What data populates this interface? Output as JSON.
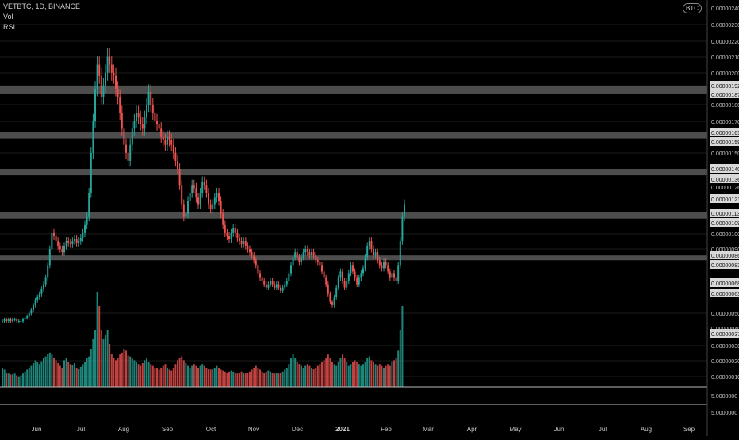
{
  "header": {
    "symbol_line": "VETBTC, 1D, BINANCE",
    "vol_label": "Vol",
    "rsi_label": "RSI",
    "currency_pill": "BTC"
  },
  "colors": {
    "background": "#000000",
    "up": "#26a69a",
    "down": "#ef5350",
    "band": "#5a5a5a",
    "label_bg": "#d9d9d9",
    "grid": "#1c1c1c",
    "axis_text": "#c8c8c8"
  },
  "chart_data": {
    "type": "candlestick",
    "x_ticks": [
      "Jun",
      "Jul",
      "Aug",
      "Sep",
      "Oct",
      "Nov",
      "Dec",
      "2021",
      "Feb",
      "Mar",
      "Apr",
      "May",
      "Jun",
      "Jul",
      "Aug",
      "Sep"
    ],
    "price_axis_ticks": [
      "0.00000230",
      "0.00000220",
      "0.00000210",
      "0.00000200",
      "0.00000180",
      "0.00000170",
      "0.00000150",
      "0.00000100",
      "0.00000090",
      "0.00000050",
      "0.00000030",
      "0.00000020",
      "0.00000010"
    ],
    "price_axis_highlighted": [
      "0.00000192",
      "0.00000187",
      "0.00000163",
      "0.00000159",
      "0.00000140",
      "0.00000136",
      "0.00000121",
      "0.00000113",
      "0.00000109",
      "0.00000086",
      "0.00000083",
      "0.00000068",
      "0.00000063",
      "0.00000037"
    ],
    "price_axis_partial": [
      "0.000002",
      "0.00000040",
      "0.00000126",
      "0.00000240"
    ],
    "indicator_axis_ticks": [
      "5.0000000",
      "5.0000000"
    ],
    "zones": [
      {
        "top": 1.92e-06,
        "bottom": 1.87e-06
      },
      {
        "top": 1.63e-06,
        "bottom": 1.59e-06
      },
      {
        "top": 1.4e-06,
        "bottom": 1.36e-06
      },
      {
        "top": 1.13e-06,
        "bottom": 1.09e-06
      },
      {
        "top": 8.6e-07,
        "bottom": 8.3e-07
      }
    ],
    "ohlc_series": {
      "start": "2020-05-10",
      "interval": "1D",
      "close": [
        4.5e-07,
        4.6e-07,
        4.5e-07,
        4.6e-07,
        4.5e-07,
        4.6e-07,
        4.6e-07,
        4.5e-07,
        4.5e-07,
        4.5e-07,
        4.6e-07,
        4.7e-07,
        4.8e-07,
        5e-07,
        5.2e-07,
        5.5e-07,
        5.8e-07,
        6e-07,
        6.2e-07,
        6.5e-07,
        6.8e-07,
        7.2e-07,
        8e-07,
        9e-07,
        1e-06,
        9.8e-07,
        9.5e-07,
        9.2e-07,
        9e-07,
        8.8e-07,
        9.2e-07,
        9.5e-07,
        9.4e-07,
        9.3e-07,
        9.5e-07,
        9.6e-07,
        9.4e-07,
        9.5e-07,
        9.7e-07,
        1e-06,
        1.05e-06,
        1.1e-06,
        1.25e-06,
        1.5e-06,
        1.7e-06,
        1.9e-06,
        2.05e-06,
        1.98e-06,
        1.85e-06,
        1.92e-06,
        2e-06,
        2.1e-06,
        2.05e-06,
        2e-06,
        1.98e-06,
        1.9e-06,
        1.85e-06,
        1.75e-06,
        1.65e-06,
        1.55e-06,
        1.5e-06,
        1.45e-06,
        1.55e-06,
        1.65e-06,
        1.7e-06,
        1.75e-06,
        1.72e-06,
        1.68e-06,
        1.65e-06,
        1.72e-06,
        1.8e-06,
        1.88e-06,
        1.8e-06,
        1.75e-06,
        1.7e-06,
        1.68e-06,
        1.65e-06,
        1.6e-06,
        1.58e-06,
        1.55e-06,
        1.6e-06,
        1.58e-06,
        1.55e-06,
        1.5e-06,
        1.45e-06,
        1.4e-06,
        1.3e-06,
        1.18e-06,
        1.1e-06,
        1.12e-06,
        1.2e-06,
        1.25e-06,
        1.3e-06,
        1.28e-06,
        1.22e-06,
        1.18e-06,
        1.25e-06,
        1.32e-06,
        1.3e-06,
        1.25e-06,
        1.18e-06,
        1.15e-06,
        1.18e-06,
        1.22e-06,
        1.25e-06,
        1.2e-06,
        1.12e-06,
        1.05e-06,
        1e-06,
        9.8e-07,
        9.6e-07,
        1e-06,
        1.03e-06,
        1e-06,
        9.7e-07,
        9.5e-07,
        9.3e-07,
        9.5e-07,
        9.2e-07,
        9e-07,
        8.8e-07,
        8.6e-07,
        8.3e-07,
        8e-07,
        7.5e-07,
        7.2e-07,
        7e-07,
        6.8e-07,
        6.6e-07,
        6.8e-07,
        7e-07,
        6.8e-07,
        6.6e-07,
        6.8e-07,
        6.6e-07,
        6.4e-07,
        6.6e-07,
        6.8e-07,
        7e-07,
        7.5e-07,
        8e-07,
        8.5e-07,
        8.8e-07,
        8.5e-07,
        8.2e-07,
        8.5e-07,
        8.8e-07,
        9e-07,
        8.8e-07,
        8.6e-07,
        8.8e-07,
        8.6e-07,
        8.3e-07,
        8.2e-07,
        8e-07,
        7.6e-07,
        7.2e-07,
        6.8e-07,
        6.2e-07,
        5.7e-07,
        5.5e-07,
        6e-07,
        6.6e-07,
        7.2e-07,
        7.6e-07,
        7e-07,
        6.6e-07,
        7e-07,
        7.5e-07,
        8e-07,
        7.6e-07,
        7.2e-07,
        6.8e-07,
        7.2e-07,
        7.5e-07,
        7.8e-07,
        8.5e-07,
        9.2e-07,
        9.5e-07,
        9e-07,
        8.6e-07,
        8.8e-07,
        8.3e-07,
        8e-07,
        7.8e-07,
        8.2e-07,
        8e-07,
        7.6e-07,
        7.2e-07,
        7.5e-07,
        7.2e-07,
        7e-07,
        8e-07,
        9.5e-07,
        1.1e-06,
        1.18e-06
      ],
      "volume_relative": [
        0.2,
        0.18,
        0.15,
        0.14,
        0.13,
        0.13,
        0.14,
        0.12,
        0.11,
        0.12,
        0.14,
        0.16,
        0.18,
        0.2,
        0.22,
        0.25,
        0.28,
        0.26,
        0.24,
        0.27,
        0.3,
        0.32,
        0.35,
        0.36,
        0.34,
        0.3,
        0.28,
        0.25,
        0.22,
        0.2,
        0.28,
        0.3,
        0.26,
        0.24,
        0.23,
        0.25,
        0.2,
        0.19,
        0.21,
        0.24,
        0.26,
        0.3,
        0.32,
        0.4,
        0.5,
        0.6,
        1.0,
        0.85,
        0.6,
        0.5,
        0.55,
        0.6,
        0.45,
        0.35,
        0.3,
        0.28,
        0.3,
        0.34,
        0.36,
        0.4,
        0.38,
        0.33,
        0.32,
        0.3,
        0.28,
        0.26,
        0.24,
        0.22,
        0.25,
        0.28,
        0.3,
        0.26,
        0.24,
        0.22,
        0.2,
        0.2,
        0.18,
        0.2,
        0.22,
        0.24,
        0.2,
        0.18,
        0.17,
        0.2,
        0.24,
        0.28,
        0.3,
        0.32,
        0.28,
        0.25,
        0.22,
        0.2,
        0.22,
        0.24,
        0.22,
        0.2,
        0.22,
        0.24,
        0.22,
        0.2,
        0.19,
        0.18,
        0.19,
        0.2,
        0.22,
        0.2,
        0.18,
        0.17,
        0.16,
        0.15,
        0.16,
        0.17,
        0.16,
        0.15,
        0.14,
        0.15,
        0.16,
        0.15,
        0.14,
        0.15,
        0.16,
        0.18,
        0.2,
        0.22,
        0.2,
        0.18,
        0.16,
        0.15,
        0.16,
        0.17,
        0.16,
        0.15,
        0.14,
        0.15,
        0.14,
        0.15,
        0.16,
        0.18,
        0.2,
        0.24,
        0.3,
        0.35,
        0.3,
        0.26,
        0.24,
        0.22,
        0.2,
        0.22,
        0.24,
        0.22,
        0.2,
        0.19,
        0.2,
        0.22,
        0.24,
        0.26,
        0.28,
        0.3,
        0.34,
        0.3,
        0.26,
        0.24,
        0.22,
        0.26,
        0.3,
        0.34,
        0.3,
        0.26,
        0.22,
        0.24,
        0.26,
        0.28,
        0.26,
        0.24,
        0.22,
        0.24,
        0.26,
        0.3,
        0.32,
        0.28,
        0.26,
        0.24,
        0.22,
        0.24,
        0.22,
        0.2,
        0.22,
        0.24,
        0.22,
        0.26,
        0.28,
        0.3,
        0.38,
        0.6,
        0.85
      ]
    },
    "volume_peak_label": "",
    "ylim": [
      0.0,
      2.45e-06
    ]
  }
}
